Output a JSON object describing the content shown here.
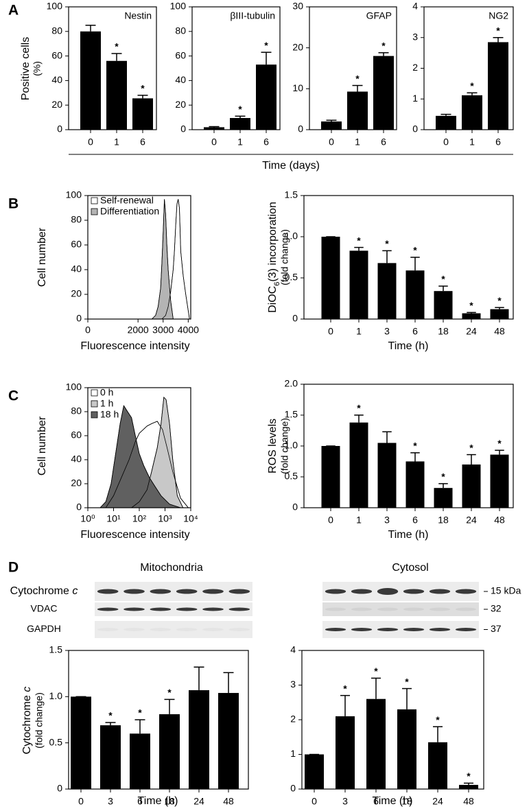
{
  "panel_labels": [
    "A",
    "B",
    "C",
    "D"
  ],
  "panel_a_xlabel": "Time (days)",
  "blots": {
    "columns": [
      "Mitochondria",
      "Cytosol"
    ],
    "rows": [
      {
        "label": {
          "segments": [
            "Cytochrome ",
            "c"
          ],
          "format": "italic"
        },
        "marker": "15 kDa"
      },
      {
        "label": "VDAC",
        "marker": "32"
      },
      {
        "label": "GAPDH",
        "marker": "37"
      }
    ]
  },
  "chart_data": [
    {
      "type": "bar",
      "title": "Nestin",
      "ylabel": [
        "Positive cells",
        "(%)"
      ],
      "categories": [
        "0",
        "1",
        "6"
      ],
      "values": [
        80,
        56,
        25.5
      ],
      "errors": [
        5,
        6,
        2.5
      ],
      "annotations": [
        null,
        "*",
        "*"
      ],
      "color": "#000000",
      "ylim": [
        0,
        100
      ],
      "yticks": [
        0,
        20,
        40,
        60,
        80,
        100
      ]
    },
    {
      "type": "bar",
      "title": "βIII-tubulin",
      "categories": [
        "0",
        "1",
        "6"
      ],
      "values": [
        2,
        9.5,
        53
      ],
      "errors": [
        0.5,
        1.5,
        10
      ],
      "annotations": [
        null,
        "*",
        "*"
      ],
      "color": "#000000",
      "ylim": [
        0,
        100
      ],
      "yticks": [
        0,
        20,
        40,
        60,
        80,
        100
      ]
    },
    {
      "type": "bar",
      "title": "GFAP",
      "categories": [
        "0",
        "1",
        "6"
      ],
      "values": [
        2,
        9.3,
        18
      ],
      "errors": [
        0.3,
        1.5,
        0.8
      ],
      "annotations": [
        null,
        "*",
        "*"
      ],
      "color": "#000000",
      "ylim": [
        0,
        30
      ],
      "yticks": [
        0,
        10,
        20,
        30
      ]
    },
    {
      "type": "bar",
      "title": "NG2",
      "categories": [
        "0",
        "1",
        "6"
      ],
      "values": [
        0.45,
        1.12,
        2.85
      ],
      "errors": [
        0.05,
        0.08,
        0.15
      ],
      "annotations": [
        null,
        "*",
        "*"
      ],
      "color": "#000000",
      "ylim": [
        0,
        4
      ],
      "yticks": [
        0,
        1,
        2,
        3,
        4
      ]
    },
    {
      "type": "area",
      "ylabel": [
        "Cell number"
      ],
      "xlabel": "Fluorescence intensity",
      "legend": "top-left",
      "xlim": [
        0,
        4100
      ],
      "xticks": [
        0,
        2000,
        3000,
        4000
      ],
      "ylim": [
        0,
        100
      ],
      "yticks": [
        0,
        20,
        40,
        60,
        80,
        100
      ],
      "series": [
        {
          "name": "Self-renewal",
          "color": "#ffffff",
          "x": [
            2950,
            3100,
            3200,
            3300,
            3400,
            3450,
            3500,
            3550,
            3600,
            3650,
            3700,
            3800,
            3900,
            4050
          ],
          "values": [
            0,
            3,
            10,
            22,
            40,
            55,
            75,
            93,
            97,
            90,
            55,
            35,
            20,
            0
          ]
        },
        {
          "name": "Differentiation",
          "color": "#b4b4b4",
          "x": [
            2550,
            2700,
            2800,
            2900,
            2950,
            3000,
            3050,
            3100,
            3150,
            3200,
            3300,
            3400
          ],
          "values": [
            0,
            3,
            10,
            25,
            45,
            70,
            97,
            85,
            60,
            40,
            15,
            0
          ]
        }
      ]
    },
    {
      "type": "bar",
      "ylabel": [
        {
          "segments": [
            "DiOC",
            "6",
            "(3) incorporation"
          ],
          "format": "sub"
        },
        "(fold change)"
      ],
      "xlabel": "Time (h)",
      "categories": [
        "0",
        "1",
        "3",
        "6",
        "18",
        "24",
        "48"
      ],
      "values": [
        1,
        0.83,
        0.68,
        0.59,
        0.34,
        0.07,
        0.12
      ],
      "errors": [
        0,
        0.04,
        0.15,
        0.16,
        0.06,
        0.01,
        0.02
      ],
      "annotations": [
        null,
        "*",
        "*",
        "*",
        "*",
        "*",
        "*"
      ],
      "color": "#000000",
      "ylim": [
        0,
        1.5
      ],
      "yticks": [
        0,
        0.5,
        {
          "value": 1,
          "label": "1.0"
        },
        1.5
      ]
    },
    {
      "type": "area",
      "ylabel": [
        "Cell number"
      ],
      "xlabel": "Fluorescence intensity",
      "legend": "top-left",
      "xscale": "log",
      "xlim": [
        1,
        10000
      ],
      "xticks": [
        {
          "value": 1,
          "label": "10⁰"
        },
        {
          "value": 10,
          "label": "10¹"
        },
        {
          "value": 100,
          "label": "10²"
        },
        {
          "value": 1000,
          "label": "10³"
        },
        {
          "value": 10000,
          "label": "10⁴"
        }
      ],
      "ylim": [
        0,
        100
      ],
      "yticks": [
        0,
        20,
        40,
        60,
        80,
        100
      ],
      "series": [
        {
          "name": "0 h",
          "color": "#ffffff",
          "x": [
            5,
            10,
            20,
            40,
            70,
            100,
            200,
            300,
            500,
            800,
            1200,
            2000,
            4000,
            8000
          ],
          "values": [
            0,
            10,
            25,
            40,
            55,
            62,
            68,
            70,
            72,
            65,
            50,
            30,
            8,
            0
          ]
        },
        {
          "name": "1 h",
          "color": "#c8c8c8",
          "x": [
            50,
            100,
            200,
            300,
            500,
            700,
            900,
            1100,
            1500,
            2000,
            3000,
            5000
          ],
          "values": [
            0,
            5,
            15,
            30,
            50,
            70,
            92,
            90,
            70,
            40,
            10,
            0
          ]
        },
        {
          "name": "18 h",
          "color": "#606060",
          "x": [
            3,
            5,
            8,
            12,
            18,
            25,
            35,
            50,
            70,
            100,
            150,
            250,
            400,
            700,
            1500,
            4000
          ],
          "values": [
            0,
            5,
            20,
            45,
            70,
            85,
            80,
            75,
            60,
            45,
            35,
            25,
            18,
            10,
            3,
            0
          ]
        }
      ]
    },
    {
      "type": "bar",
      "ylabel": [
        "ROS levels",
        "(fold change)"
      ],
      "xlabel": "Time (h)",
      "categories": [
        "0",
        "1",
        "3",
        "6",
        "18",
        "24",
        "48"
      ],
      "values": [
        1,
        1.38,
        1.05,
        0.75,
        0.32,
        0.7,
        0.86
      ],
      "errors": [
        0,
        0.12,
        0.18,
        0.14,
        0.07,
        0.16,
        0.07
      ],
      "annotations": [
        null,
        "*",
        null,
        "*",
        "*",
        "*",
        "*"
      ],
      "color": "#000000",
      "ylim": [
        0,
        2
      ],
      "yticks": [
        0,
        0.5,
        {
          "value": 1,
          "label": "1.0"
        },
        1.5,
        {
          "value": 2,
          "label": "2.0"
        }
      ]
    },
    {
      "type": "bar",
      "ylabel": [
        {
          "segments": [
            "Cytochrome ",
            "c"
          ],
          "format": "italic"
        },
        "(fold change)"
      ],
      "xlabel": "Time (h)",
      "categories": [
        "0",
        "3",
        "6",
        "18",
        "24",
        "48"
      ],
      "values": [
        1,
        0.69,
        0.6,
        0.81,
        1.07,
        1.04
      ],
      "errors": [
        0,
        0.03,
        0.15,
        0.16,
        0.25,
        0.22
      ],
      "annotations": [
        null,
        "*",
        "*",
        "*",
        null,
        null
      ],
      "color": "#000000",
      "ylim": [
        0,
        1.5
      ],
      "yticks": [
        0,
        0.5,
        {
          "value": 1,
          "label": "1.0"
        },
        1.5
      ]
    },
    {
      "type": "bar",
      "xlabel": "Time (h)",
      "categories": [
        "0",
        "3",
        "6",
        "18",
        "24",
        "48"
      ],
      "values": [
        1,
        2.1,
        2.6,
        2.3,
        1.35,
        0.12
      ],
      "errors": [
        0,
        0.6,
        0.6,
        0.6,
        0.45,
        0.05
      ],
      "annotations": [
        null,
        "*",
        "*",
        "*",
        "*",
        "*"
      ],
      "color": "#000000",
      "ylim": [
        0,
        4
      ],
      "yticks": [
        0,
        1,
        2,
        3,
        4
      ]
    }
  ]
}
